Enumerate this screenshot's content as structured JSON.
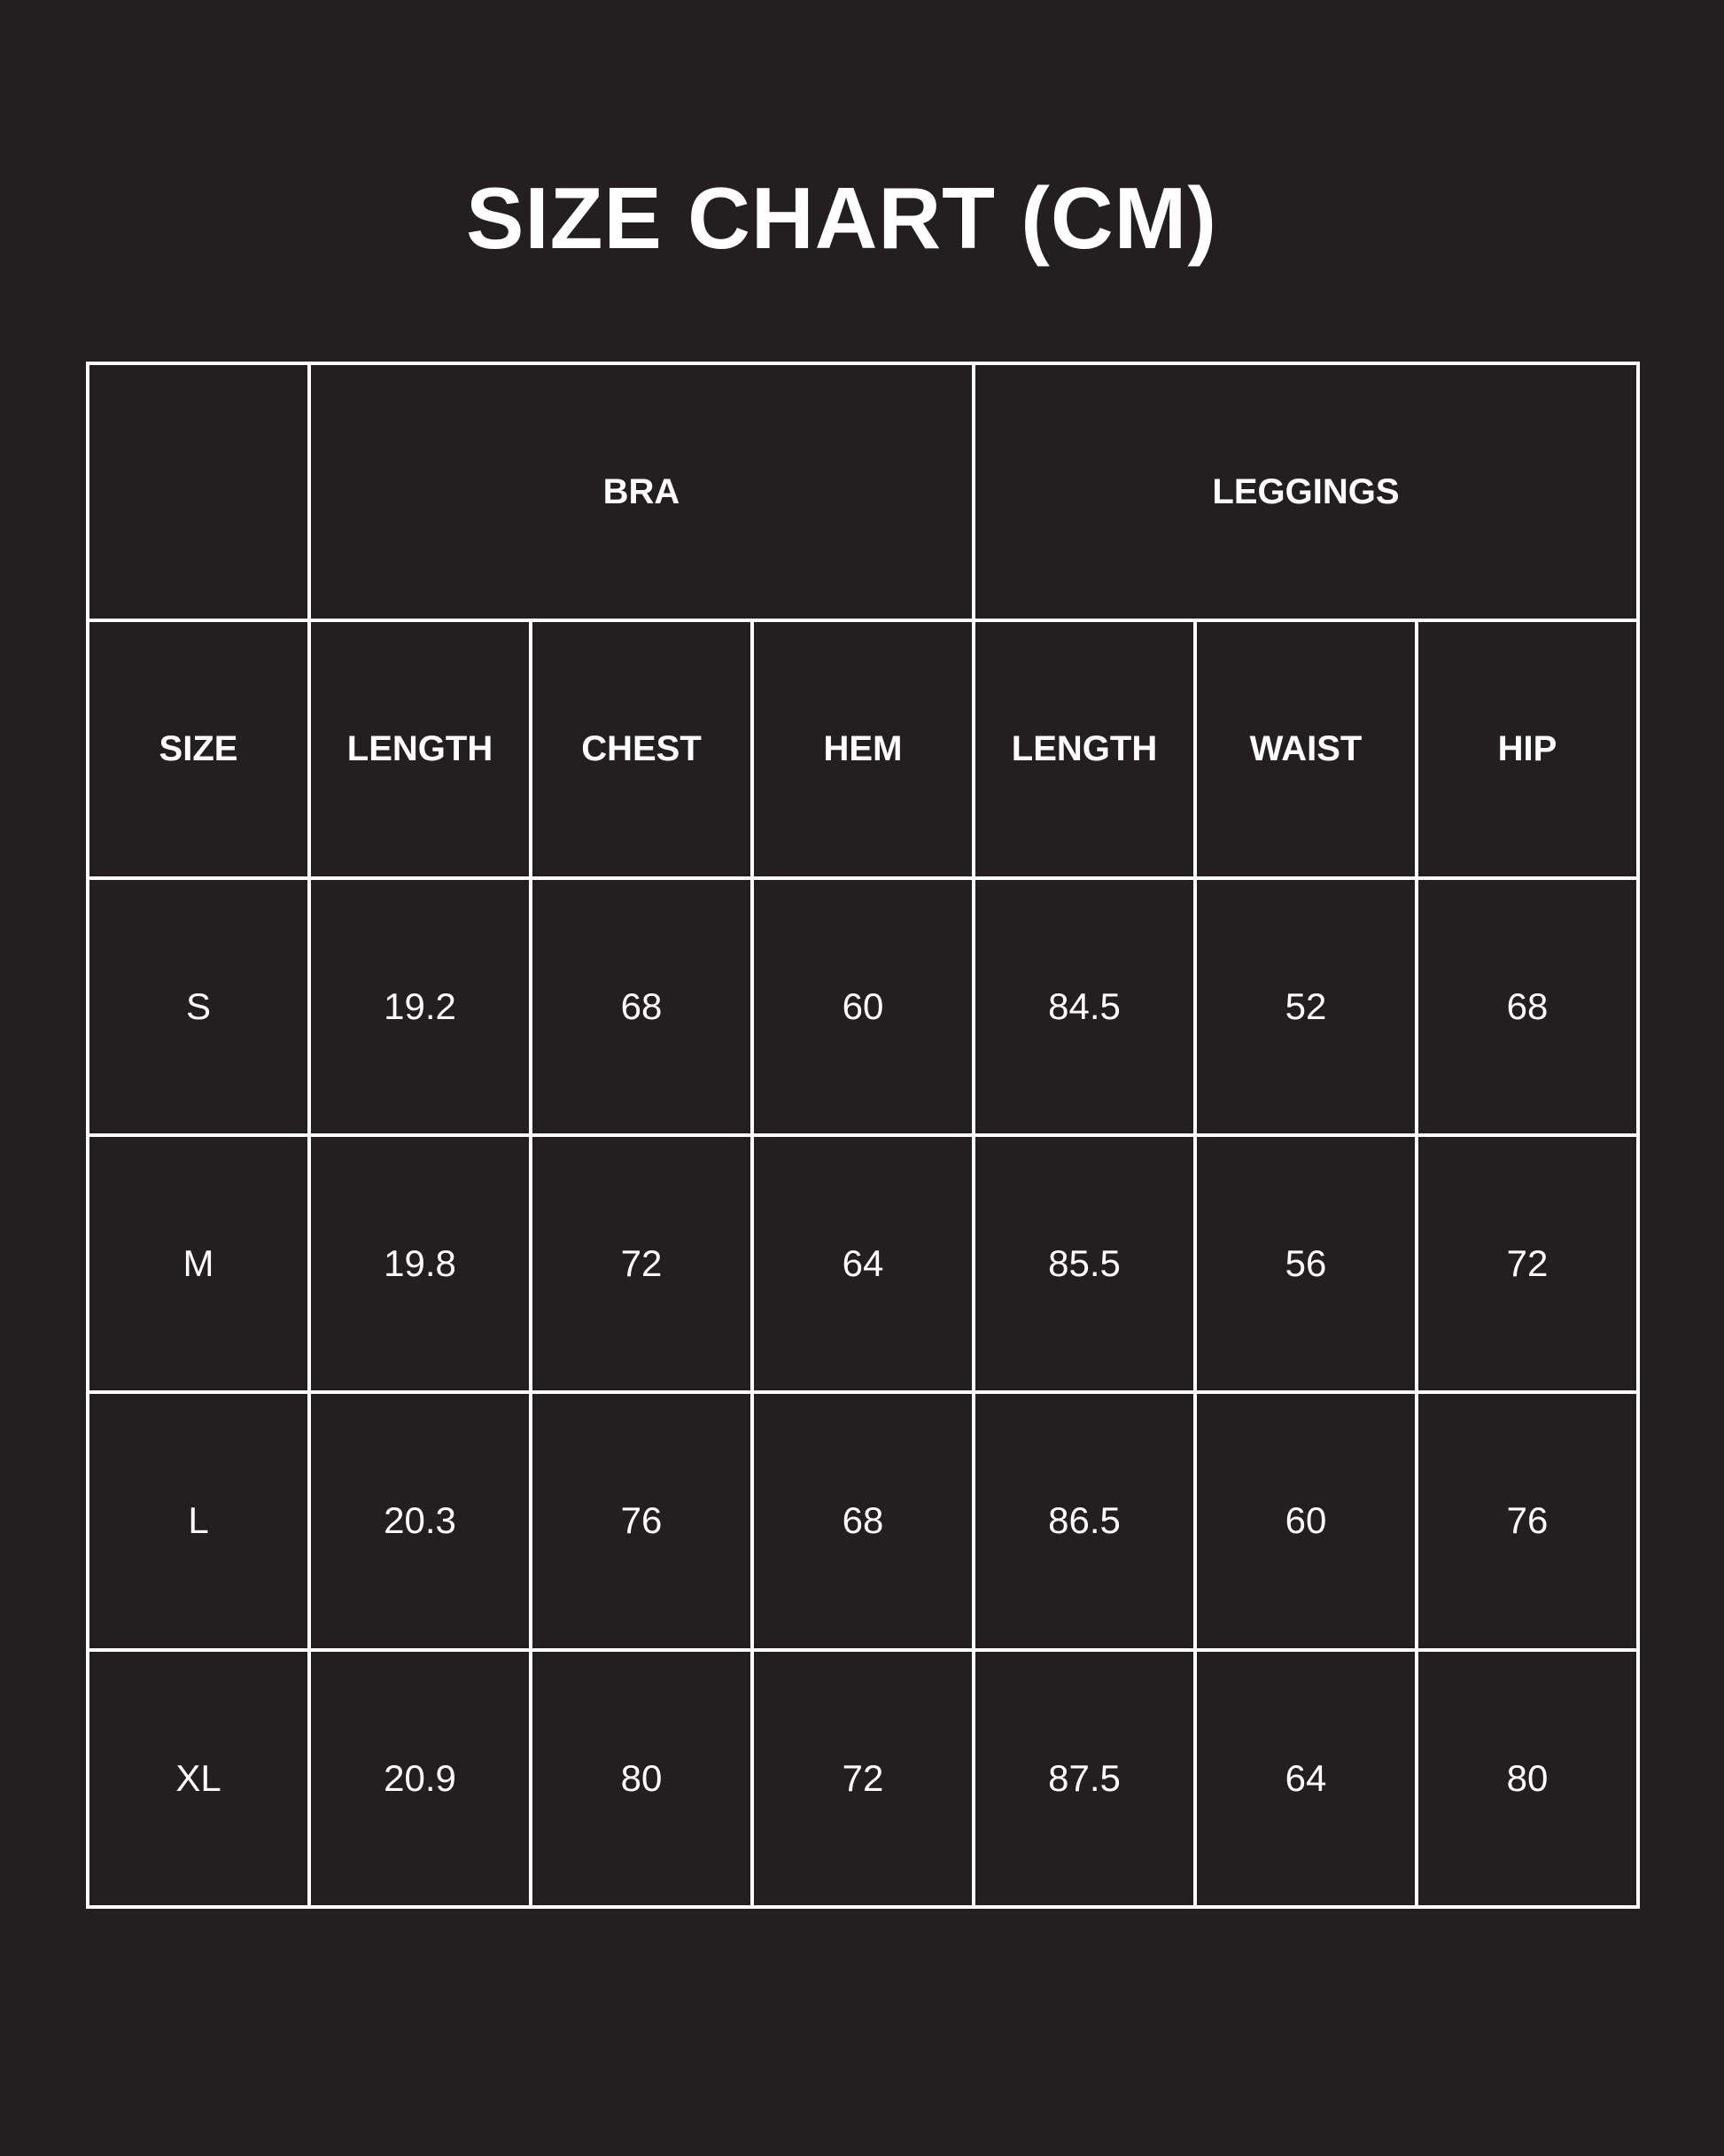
{
  "title": "SIZE CHART (CM)",
  "groups": {
    "bra": "BRA",
    "leggings": "LEGGINGS"
  },
  "headers": [
    "SIZE",
    "LENGTH",
    "CHEST",
    "HEM",
    "LENGTH",
    "WAIST",
    "HIP"
  ],
  "rows": [
    [
      "S",
      "19.2",
      "68",
      "60",
      "84.5",
      "52",
      "68"
    ],
    [
      "M",
      "19.8",
      "72",
      "64",
      "85.5",
      "56",
      "72"
    ],
    [
      "L",
      "20.3",
      "76",
      "68",
      "86.5",
      "60",
      "76"
    ],
    [
      "XL",
      "20.9",
      "80",
      "72",
      "87.5",
      "64",
      "80"
    ]
  ],
  "colors": {
    "background": "#231f20",
    "lines": "#ffffff",
    "text": "#ffffff"
  }
}
